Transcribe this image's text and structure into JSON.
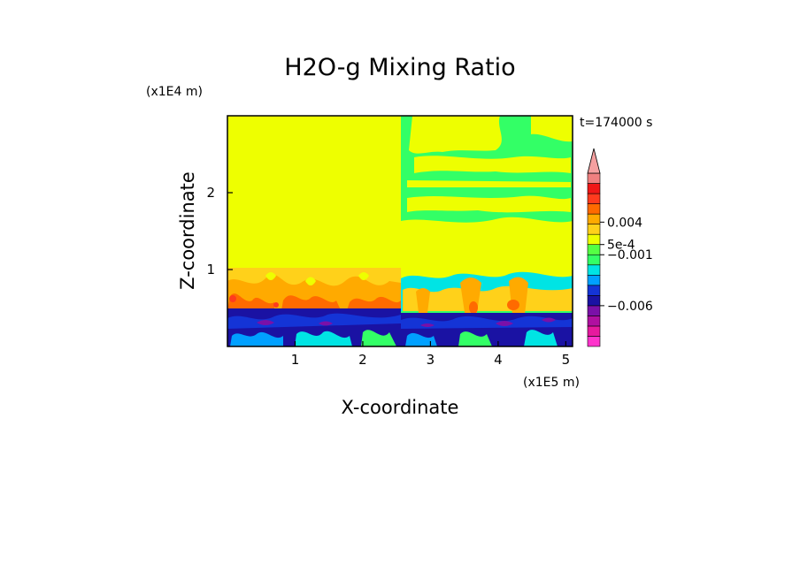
{
  "chart_data": {
    "type": "heatmap",
    "title": "H2O-g Mixing Ratio",
    "time_label": "t=174000 s",
    "xlabel": "X-coordinate",
    "ylabel": "Z-coordinate",
    "x_scale_label": "(x1E5 m)",
    "y_scale_label": "(x1E4 m)",
    "xlim": [
      0,
      5.1
    ],
    "ylim": [
      0,
      3.0
    ],
    "x_ticks": [
      {
        "value": 1,
        "label": "1"
      },
      {
        "value": 2,
        "label": "2"
      },
      {
        "value": 3,
        "label": "3"
      },
      {
        "value": 4,
        "label": "4"
      },
      {
        "value": 5,
        "label": "5"
      }
    ],
    "y_ticks": [
      {
        "value": 1,
        "label": "1"
      },
      {
        "value": 2,
        "label": "2"
      }
    ],
    "colorbar": {
      "colors": [
        "#ff33cc",
        "#e6199e",
        "#b00fa0",
        "#7a10a8",
        "#1a12a3",
        "#1434d6",
        "#00a0ff",
        "#00e4e4",
        "#33ff66",
        "#55ff44",
        "#eeff00",
        "#ffd11a",
        "#ffaa00",
        "#ff6a00",
        "#ff3b1e",
        "#f01818",
        "#f08080",
        "#f5a0a0"
      ],
      "labels": [
        {
          "level": 12.2,
          "text": "0.004"
        },
        {
          "level": 10.0,
          "text": "5e-4"
        },
        {
          "level": 9.0,
          "text": "−0.001"
        },
        {
          "level": 4.0,
          "text": "−0.006"
        }
      ]
    },
    "regions": [
      {
        "name": "upper-left",
        "x": [
          0,
          2.55
        ],
        "z": [
          1.0,
          3.0
        ],
        "level": 10
      },
      {
        "name": "lower-left-warm",
        "x": [
          0,
          2.55
        ],
        "z": [
          0.5,
          1.0
        ],
        "level": 12
      },
      {
        "name": "lower-left-dry",
        "x": [
          0,
          2.55
        ],
        "z": [
          0,
          0.5
        ],
        "level": 5
      },
      {
        "name": "right-upper-moist",
        "x": [
          2.55,
          5.1
        ],
        "z": [
          0.8,
          3.0
        ],
        "level": 9
      },
      {
        "name": "right-lower-dry",
        "x": [
          2.55,
          5.1
        ],
        "z": [
          0,
          0.5
        ],
        "level": 5
      }
    ]
  }
}
